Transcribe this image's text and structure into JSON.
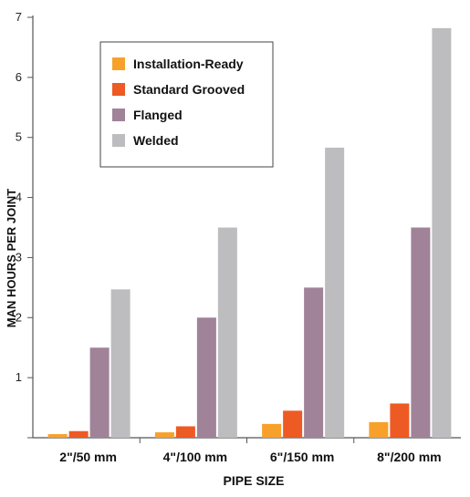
{
  "chart_data": {
    "type": "bar",
    "title": "",
    "xlabel": "PIPE SIZE",
    "ylabel": "MAN HOURS PER JOINT",
    "categories": [
      "2\"/50 mm",
      "4\"/100 mm",
      "6\"/150 mm",
      "8\"/200 mm"
    ],
    "ylim": [
      0,
      7
    ],
    "yticks": [
      "1",
      "2",
      "3",
      "4",
      "5",
      "6",
      "7"
    ],
    "grid": false,
    "legend_position": "top-left",
    "series": [
      {
        "name": "Installation-Ready",
        "color": "#f7a12b",
        "values": [
          0.06,
          0.09,
          0.23,
          0.26
        ]
      },
      {
        "name": "Standard Grooved",
        "color": "#ee5a24",
        "values": [
          0.11,
          0.19,
          0.45,
          0.57
        ]
      },
      {
        "name": "Flanged",
        "color": "#a08399",
        "values": [
          1.5,
          2.0,
          2.5,
          3.5
        ]
      },
      {
        "name": "Welded",
        "color": "#bdbdbf",
        "values": [
          2.47,
          3.5,
          4.83,
          6.82
        ]
      }
    ]
  }
}
